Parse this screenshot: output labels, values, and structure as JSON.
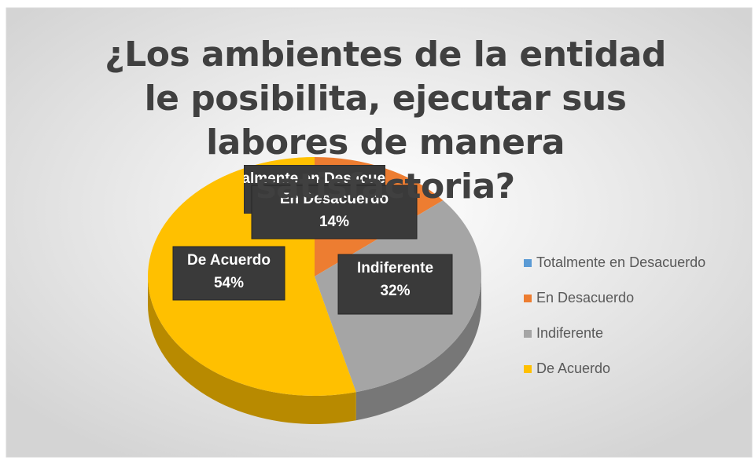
{
  "chart_data": {
    "type": "pie3d",
    "title": "¿Los ambientes de la entidad le posibilita, ejecutar sus labores de manera satisfactoria?",
    "categories": [
      "Totalmente en Desacuerdo",
      "En Desacuerdo",
      "Indiferente",
      "De Acuerdo"
    ],
    "values": [
      0,
      14,
      32,
      54
    ],
    "value_labels": [
      "0%",
      "14%",
      "32%",
      "54%"
    ],
    "colors": [
      "#5b9bd5",
      "#ed7d31",
      "#a5a5a5",
      "#ffc000"
    ],
    "legend": "right"
  }
}
